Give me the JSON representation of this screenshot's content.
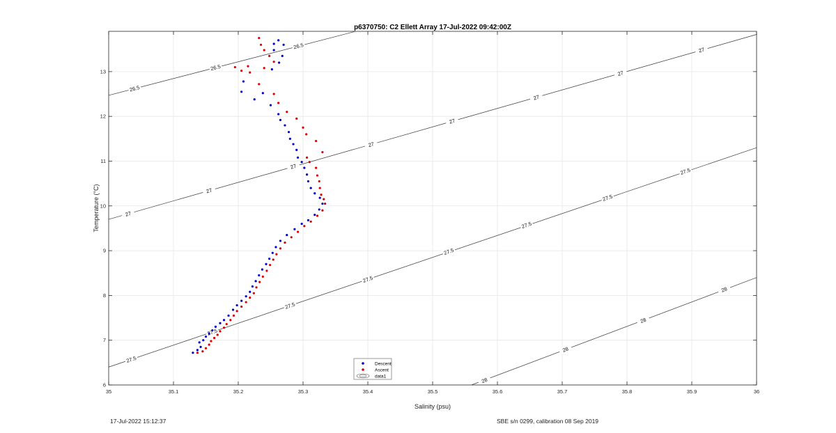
{
  "chart_data": {
    "type": "scatter",
    "title": "p6370750: C2 Ellett Array 17-Jul-2022 09:42:00Z",
    "xlabel": "Salinity (psu)",
    "ylabel": "Temperature (°C)",
    "xlim": [
      35,
      36
    ],
    "ylim": [
      6,
      13.9
    ],
    "xticks": [
      35,
      35.1,
      35.2,
      35.3,
      35.4,
      35.5,
      35.6,
      35.7,
      35.8,
      35.9,
      36
    ],
    "xtick_labels": [
      "35",
      "35.1",
      "35.2",
      "35.3",
      "35.4",
      "35.5",
      "35.6",
      "35.7",
      "35.8",
      "35.9",
      "36"
    ],
    "yticks": [
      6,
      7,
      8,
      9,
      10,
      11,
      12,
      13
    ],
    "ytick_labels": [
      "6",
      "7",
      "8",
      "9",
      "10",
      "11",
      "12",
      "13"
    ],
    "grid": true,
    "legend_position": "bottom-center",
    "series": [
      {
        "name": "Descent",
        "color": "#0000cc",
        "marker": "dot",
        "points": [
          [
            35.13,
            6.72
          ],
          [
            35.137,
            6.78
          ],
          [
            35.142,
            6.85
          ],
          [
            35.14,
            6.95
          ],
          [
            35.146,
            7.0
          ],
          [
            35.15,
            7.08
          ],
          [
            35.155,
            7.15
          ],
          [
            35.16,
            7.22
          ],
          [
            35.165,
            7.3
          ],
          [
            35.172,
            7.38
          ],
          [
            35.178,
            7.45
          ],
          [
            35.185,
            7.55
          ],
          [
            35.192,
            7.68
          ],
          [
            35.198,
            7.78
          ],
          [
            35.205,
            7.88
          ],
          [
            35.212,
            7.98
          ],
          [
            35.218,
            8.08
          ],
          [
            35.222,
            8.2
          ],
          [
            35.227,
            8.32
          ],
          [
            35.232,
            8.45
          ],
          [
            35.237,
            8.58
          ],
          [
            35.243,
            8.7
          ],
          [
            35.248,
            8.82
          ],
          [
            35.253,
            8.95
          ],
          [
            35.258,
            9.08
          ],
          [
            35.265,
            9.22
          ],
          [
            35.275,
            9.35
          ],
          [
            35.287,
            9.48
          ],
          [
            35.298,
            9.6
          ],
          [
            35.308,
            9.68
          ],
          [
            35.318,
            9.8
          ],
          [
            35.325,
            9.92
          ],
          [
            35.33,
            10.05
          ],
          [
            35.326,
            10.18
          ],
          [
            35.318,
            10.28
          ],
          [
            35.312,
            10.4
          ],
          [
            35.308,
            10.55
          ],
          [
            35.306,
            10.7
          ],
          [
            35.302,
            10.85
          ],
          [
            35.298,
            10.98
          ],
          [
            35.292,
            11.08
          ],
          [
            35.29,
            11.25
          ],
          [
            35.285,
            11.38
          ],
          [
            35.28,
            11.5
          ],
          [
            35.278,
            11.65
          ],
          [
            35.272,
            11.8
          ],
          [
            35.265,
            11.92
          ],
          [
            35.262,
            12.05
          ],
          [
            35.25,
            12.25
          ],
          [
            35.225,
            12.38
          ],
          [
            35.238,
            12.52
          ],
          [
            35.205,
            12.55
          ],
          [
            35.208,
            12.78
          ],
          [
            35.252,
            13.05
          ],
          [
            35.263,
            13.2
          ],
          [
            35.268,
            13.35
          ],
          [
            35.255,
            13.48
          ],
          [
            35.27,
            13.6
          ],
          [
            35.262,
            13.7
          ],
          [
            35.255,
            13.62
          ]
        ]
      },
      {
        "name": "Ascent",
        "color": "#dd0000",
        "marker": "dot",
        "points": [
          [
            35.137,
            6.72
          ],
          [
            35.145,
            6.75
          ],
          [
            35.15,
            6.82
          ],
          [
            35.155,
            6.9
          ],
          [
            35.158,
            6.98
          ],
          [
            35.163,
            7.05
          ],
          [
            35.168,
            7.12
          ],
          [
            35.172,
            7.2
          ],
          [
            35.178,
            7.28
          ],
          [
            35.182,
            7.36
          ],
          [
            35.188,
            7.45
          ],
          [
            35.193,
            7.55
          ],
          [
            35.198,
            7.65
          ],
          [
            35.205,
            7.75
          ],
          [
            35.212,
            7.85
          ],
          [
            35.218,
            7.95
          ],
          [
            35.224,
            8.05
          ],
          [
            35.228,
            8.18
          ],
          [
            35.233,
            8.3
          ],
          [
            35.238,
            8.42
          ],
          [
            35.244,
            8.55
          ],
          [
            35.249,
            8.68
          ],
          [
            35.254,
            8.8
          ],
          [
            35.259,
            8.92
          ],
          [
            35.265,
            9.05
          ],
          [
            35.272,
            9.18
          ],
          [
            35.282,
            9.3
          ],
          [
            35.292,
            9.42
          ],
          [
            35.302,
            9.55
          ],
          [
            35.312,
            9.65
          ],
          [
            35.322,
            9.78
          ],
          [
            35.33,
            9.9
          ],
          [
            35.334,
            10.05
          ],
          [
            35.332,
            10.15
          ],
          [
            35.328,
            10.25
          ],
          [
            35.326,
            10.4
          ],
          [
            35.325,
            10.55
          ],
          [
            35.322,
            10.68
          ],
          [
            35.32,
            10.85
          ],
          [
            35.31,
            10.98
          ],
          [
            35.306,
            11.08
          ],
          [
            35.33,
            11.2
          ],
          [
            35.32,
            11.45
          ],
          [
            35.305,
            11.6
          ],
          [
            35.3,
            11.75
          ],
          [
            35.29,
            11.95
          ],
          [
            35.275,
            12.1
          ],
          [
            35.262,
            12.3
          ],
          [
            35.255,
            12.5
          ],
          [
            35.232,
            12.72
          ],
          [
            35.218,
            12.98
          ],
          [
            35.205,
            13.02
          ],
          [
            35.215,
            13.12
          ],
          [
            35.195,
            13.1
          ],
          [
            35.24,
            13.08
          ],
          [
            35.255,
            13.22
          ],
          [
            35.248,
            13.35
          ],
          [
            35.24,
            13.48
          ],
          [
            35.235,
            13.6
          ],
          [
            35.232,
            13.75
          ]
        ]
      }
    ],
    "contours": [
      {
        "level": "26.5",
        "points": [
          [
            35,
            12.47
          ],
          [
            35.4,
            13.97
          ]
        ],
        "labels": [
          [
            35.04,
            12.62
          ],
          [
            35.165,
            13.09
          ],
          [
            35.293,
            13.57
          ]
        ]
      },
      {
        "level": "27",
        "points": [
          [
            35,
            9.7
          ],
          [
            36,
            13.83
          ]
        ],
        "labels": [
          [
            35.03,
            9.82
          ],
          [
            35.155,
            10.34
          ],
          [
            35.285,
            10.88
          ],
          [
            35.405,
            11.37
          ],
          [
            35.53,
            11.89
          ],
          [
            35.66,
            12.42
          ],
          [
            35.79,
            12.96
          ],
          [
            35.915,
            13.48
          ]
        ]
      },
      {
        "level": "27.5",
        "points": [
          [
            35,
            6.4
          ],
          [
            36,
            11.3
          ]
        ],
        "labels": [
          [
            35.035,
            6.57
          ],
          [
            35.16,
            7.18
          ],
          [
            35.28,
            7.77
          ],
          [
            35.4,
            8.36
          ],
          [
            35.525,
            8.98
          ],
          [
            35.645,
            9.57
          ],
          [
            35.77,
            10.18
          ],
          [
            35.89,
            10.77
          ]
        ]
      },
      {
        "level": "28",
        "points": [
          [
            35.56,
            6
          ],
          [
            36,
            8.4
          ]
        ],
        "labels": [
          [
            35.58,
            6.1
          ],
          [
            35.705,
            6.79
          ],
          [
            35.825,
            7.44
          ],
          [
            35.95,
            8.13
          ]
        ]
      }
    ],
    "legend_entries": [
      "Descent",
      "Ascent",
      "data1"
    ]
  },
  "footer": {
    "left": "17-Jul-2022 15:12:37",
    "right": "SBE s/n 0299, calibration 08 Sep 2019"
  }
}
